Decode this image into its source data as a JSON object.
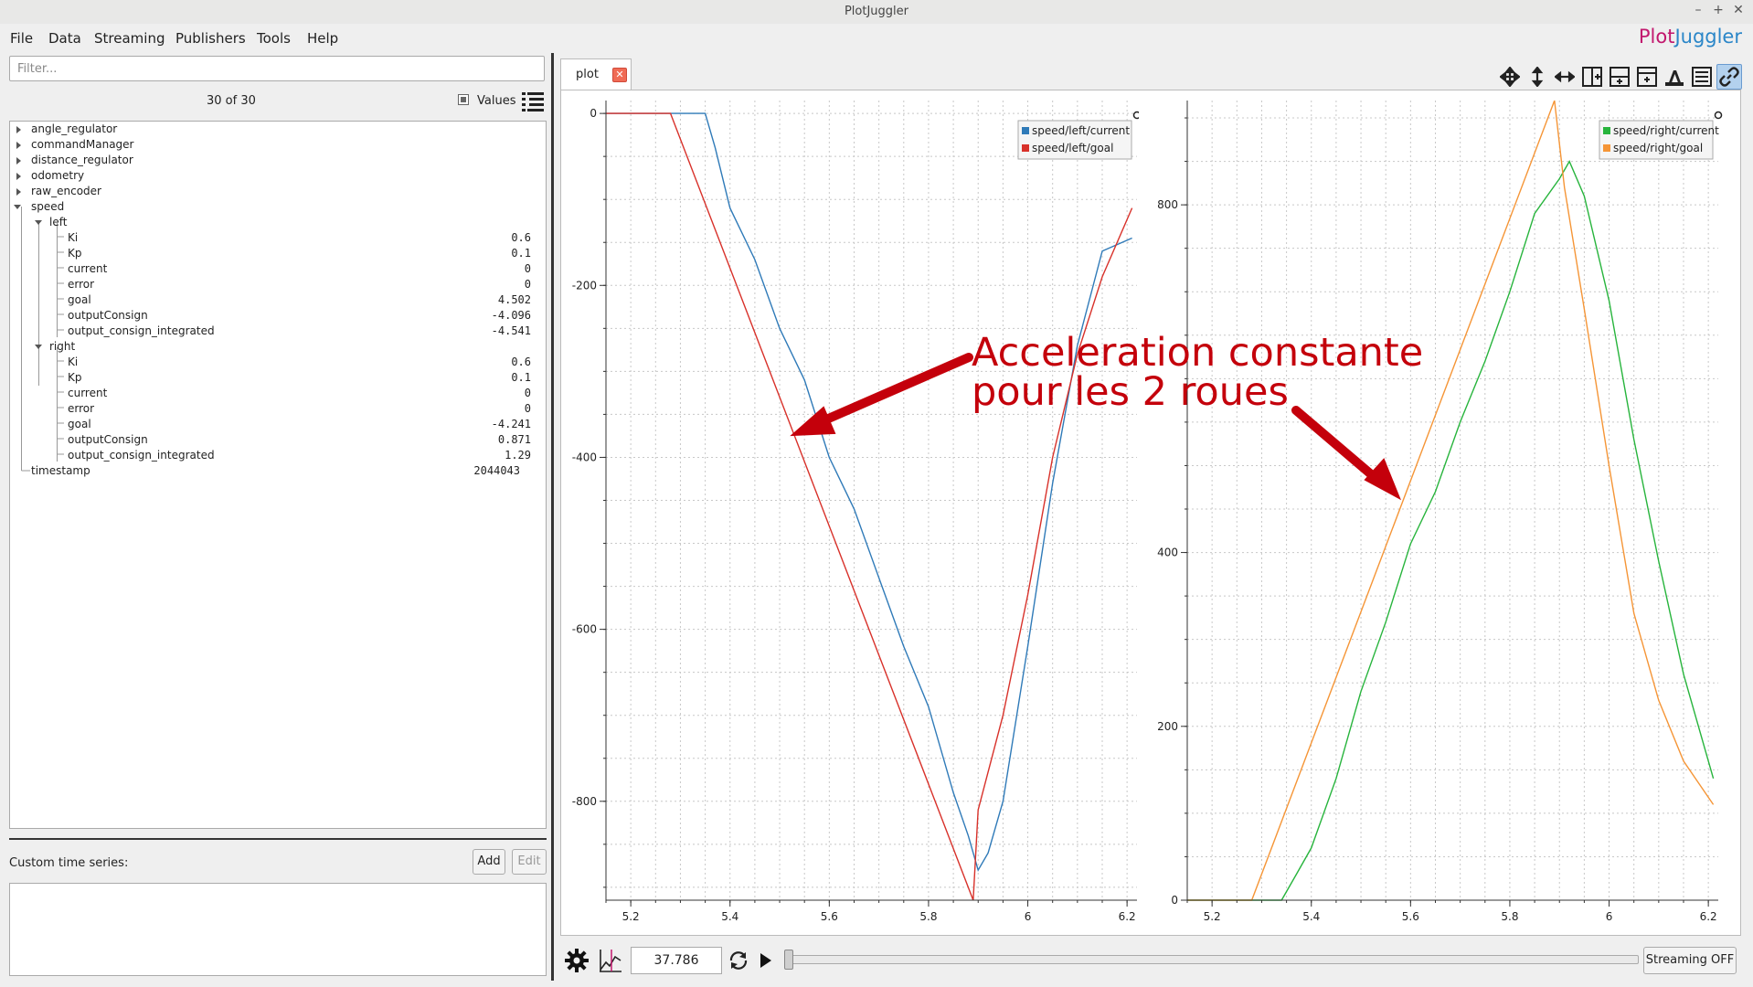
{
  "window": {
    "title": "PlotJuggler"
  },
  "window_controls": {
    "minimize": "–",
    "maximize": "+",
    "close": "✕"
  },
  "menu": {
    "file": "File",
    "data": "Data",
    "streaming": "Streaming",
    "publishers": "Publishers",
    "tools": "Tools",
    "help": "Help"
  },
  "brand": {
    "part1": "Plot",
    "part2": "Juggler"
  },
  "left": {
    "filter_placeholder": "Filter...",
    "count": "30 of 30",
    "values_label": "Values",
    "values_checked": true
  },
  "tree": {
    "angle_regulator": "angle_regulator",
    "commandManager": "commandManager",
    "distance_regulator": "distance_regulator",
    "odometry": "odometry",
    "raw_encoder": "raw_encoder",
    "speed": "speed",
    "left": {
      "label": "left",
      "Ki": "Ki",
      "Ki_val": "0.6",
      "Kp": "Kp",
      "Kp_val": "0.1",
      "current": "current",
      "current_val": "0",
      "error": "error",
      "error_val": "0",
      "goal": "goal",
      "goal_val": "4.502",
      "outputConsign": "outputConsign",
      "outputConsign_val": "-4.096",
      "output_consign_integrated": "output_consign_integrated",
      "output_consign_integrated_val": "-4.541"
    },
    "right": {
      "label": "right",
      "Ki": "Ki",
      "Ki_val": "0.6",
      "Kp": "Kp",
      "Kp_val": "0.1",
      "current": "current",
      "current_val": "0",
      "error": "error",
      "error_val": "0",
      "goal": "goal",
      "goal_val": "-4.241",
      "outputConsign": "outputConsign",
      "outputConsign_val": "0.871",
      "output_consign_integrated": "output_consign_integrated",
      "output_consign_integrated_val": "1.29"
    },
    "timestamp": "timestamp",
    "timestamp_val": "2044043"
  },
  "custom": {
    "label": "Custom time series:",
    "add": "Add",
    "edit": "Edit"
  },
  "tab": {
    "label": "plot",
    "close": "✕"
  },
  "bottom": {
    "time_value": "37.786",
    "streaming_button": "Streaming OFF"
  },
  "annotation": {
    "line1": "Acceleration constante",
    "line2": "pour les 2 roues"
  },
  "chart_data": [
    {
      "type": "line",
      "xlim": [
        5.15,
        6.22
      ],
      "ylim": [
        -915,
        15
      ],
      "x_ticks": [
        "5.2",
        "5.4",
        "5.6",
        "5.8",
        "6",
        "6.2"
      ],
      "y_ticks": [
        "0",
        "-200",
        "-400",
        "-600",
        "-800"
      ],
      "legend": "top-right",
      "grid": true,
      "series": [
        {
          "name": "speed/left/current",
          "color": "#2f7ab8",
          "x": [
            5.15,
            5.35,
            5.37,
            5.4,
            5.45,
            5.5,
            5.55,
            5.6,
            5.65,
            5.7,
            5.75,
            5.8,
            5.85,
            5.88,
            5.9,
            5.92,
            5.95,
            6.0,
            6.05,
            6.1,
            6.15,
            6.21
          ],
          "y": [
            0,
            0,
            -40,
            -110,
            -170,
            -250,
            -310,
            -400,
            -460,
            -540,
            -620,
            -690,
            -790,
            -840,
            -880,
            -860,
            -800,
            -620,
            -430,
            -270,
            -160,
            -145
          ]
        },
        {
          "name": "speed/left/goal",
          "color": "#d8312a",
          "x": [
            5.15,
            5.28,
            5.89,
            5.9,
            5.95,
            6.0,
            6.05,
            6.1,
            6.15,
            6.21
          ],
          "y": [
            0,
            0,
            -915,
            -810,
            -700,
            -560,
            -400,
            -280,
            -190,
            -110
          ]
        }
      ]
    },
    {
      "type": "line",
      "xlim": [
        5.15,
        6.22
      ],
      "ylim": [
        0,
        920
      ],
      "x_ticks": [
        "5.2",
        "5.4",
        "5.6",
        "5.8",
        "6",
        "6.2"
      ],
      "y_ticks": [
        "0",
        "200",
        "400",
        "800"
      ],
      "legend": "top-right",
      "grid": true,
      "series": [
        {
          "name": "speed/right/current",
          "color": "#27b43c",
          "x": [
            5.15,
            5.34,
            5.37,
            5.4,
            5.45,
            5.5,
            5.55,
            5.6,
            5.65,
            5.7,
            5.75,
            5.8,
            5.85,
            5.9,
            5.92,
            5.95,
            6.0,
            6.05,
            6.1,
            6.15,
            6.21
          ],
          "y": [
            0,
            0,
            30,
            60,
            140,
            240,
            320,
            410,
            470,
            550,
            620,
            700,
            790,
            830,
            850,
            810,
            690,
            530,
            390,
            260,
            140
          ]
        },
        {
          "name": "speed/right/goal",
          "color": "#f59536",
          "x": [
            5.15,
            5.28,
            5.89,
            5.91,
            5.95,
            6.0,
            6.05,
            6.1,
            6.15,
            6.21
          ],
          "y": [
            0,
            0,
            920,
            820,
            680,
            500,
            330,
            230,
            160,
            110
          ]
        }
      ]
    }
  ]
}
